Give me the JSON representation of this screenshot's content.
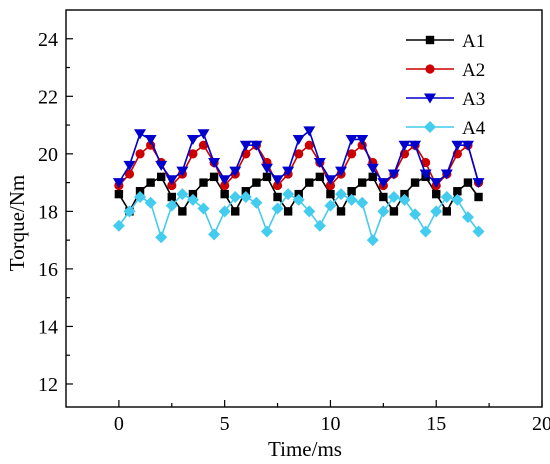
{
  "chart_data": {
    "type": "line",
    "xlabel": "Time/ms",
    "ylabel": "Torque/Nm",
    "xlim": [
      -2.5,
      20
    ],
    "ylim": [
      11.2,
      25
    ],
    "xticks": [
      0,
      5,
      10,
      15,
      20
    ],
    "yticks": [
      12,
      14,
      16,
      18,
      20,
      22,
      24
    ],
    "grid": false,
    "legend_position": "top-right",
    "x": [
      0,
      0.5,
      1.0,
      1.5,
      2.0,
      2.5,
      3.0,
      3.5,
      4.0,
      4.5,
      5.0,
      5.5,
      6.0,
      6.5,
      7.0,
      7.5,
      8.0,
      8.5,
      9.0,
      9.5,
      10.0,
      10.5,
      11.0,
      11.5,
      12.0,
      12.5,
      13.0,
      13.5,
      14.0,
      14.5,
      15.0,
      15.5,
      16.0,
      16.5,
      17.0
    ],
    "series": [
      {
        "name": "A1",
        "color": "#000000",
        "marker": "square",
        "values": [
          18.6,
          18.0,
          18.7,
          19.0,
          19.2,
          18.5,
          18.0,
          18.6,
          19.0,
          19.2,
          18.6,
          18.0,
          18.7,
          19.0,
          19.2,
          18.5,
          18.0,
          18.6,
          19.0,
          19.2,
          18.6,
          18.0,
          18.7,
          19.0,
          19.2,
          18.5,
          18.0,
          18.6,
          19.0,
          19.2,
          18.6,
          18.0,
          18.7,
          19.0,
          18.5
        ]
      },
      {
        "name": "A2",
        "color": "#cc0000",
        "marker": "circle",
        "values": [
          18.9,
          19.3,
          20.0,
          20.3,
          19.7,
          18.9,
          19.3,
          20.0,
          20.3,
          19.7,
          18.9,
          19.3,
          20.0,
          20.3,
          19.7,
          18.9,
          19.3,
          20.0,
          20.3,
          19.7,
          18.9,
          19.3,
          20.0,
          20.3,
          19.7,
          18.9,
          19.3,
          20.0,
          20.3,
          19.7,
          18.9,
          19.3,
          20.0,
          20.3,
          19.0
        ]
      },
      {
        "name": "A3",
        "color": "#0000cc",
        "marker": "triangle-down",
        "values": [
          19.0,
          19.6,
          20.7,
          20.5,
          19.6,
          19.1,
          19.4,
          20.5,
          20.7,
          19.7,
          19.1,
          19.4,
          20.3,
          20.3,
          19.5,
          19.1,
          19.4,
          20.5,
          20.8,
          19.7,
          19.1,
          19.4,
          20.5,
          20.5,
          19.5,
          19.0,
          19.3,
          20.3,
          20.3,
          19.3,
          19.0,
          19.3,
          20.3,
          20.3,
          19.0
        ]
      },
      {
        "name": "A4",
        "color": "#44ccee",
        "marker": "diamond",
        "values": [
          17.5,
          18.0,
          18.5,
          18.3,
          17.1,
          18.2,
          18.6,
          18.4,
          18.1,
          17.2,
          18.0,
          18.5,
          18.5,
          18.3,
          17.3,
          18.1,
          18.6,
          18.4,
          18.0,
          17.5,
          18.2,
          18.6,
          18.4,
          18.3,
          17.0,
          18.0,
          18.5,
          18.4,
          17.9,
          17.3,
          18.0,
          18.5,
          18.4,
          17.8,
          17.3
        ]
      }
    ]
  }
}
